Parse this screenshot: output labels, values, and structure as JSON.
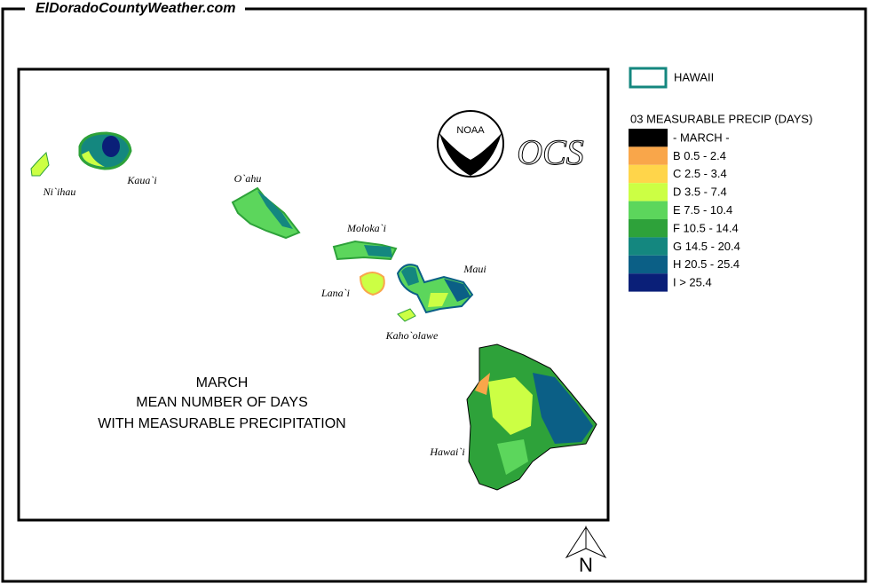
{
  "header": {
    "site": "ElDoradoCountyWeather.com"
  },
  "map": {
    "title_lines": [
      "MARCH",
      "MEAN NUMBER OF DAYS",
      "WITH MEASURABLE PRECIPITATION"
    ],
    "islands": [
      {
        "label": "Ni`ihau"
      },
      {
        "label": "Kaua`i"
      },
      {
        "label": "O`ahu"
      },
      {
        "label": "Moloka`i"
      },
      {
        "label": "Lana`i"
      },
      {
        "label": "Maui"
      },
      {
        "label": "Kaho`olawe"
      },
      {
        "label": "Hawai`i"
      }
    ],
    "noaa": "NOAA",
    "ocs": "OCS",
    "north": "N"
  },
  "legend": {
    "region": "HAWAII",
    "title": "03 MEASURABLE  PRECIP (DAYS)",
    "items": [
      {
        "label": "- MARCH -",
        "color": "#000000"
      },
      {
        "label": "B 0.5 - 2.4",
        "color": "#f9a64a"
      },
      {
        "label": "C 2.5 - 3.4",
        "color": "#ffd54a"
      },
      {
        "label": "D 3.5 - 7.4",
        "color": "#ccff44"
      },
      {
        "label": "E 7.5 - 10.4",
        "color": "#5cd65c"
      },
      {
        "label": "F 10.5 - 14.4",
        "color": "#2ea23a"
      },
      {
        "label": "G 14.5 - 20.4",
        "color": "#14877f"
      },
      {
        "label": "H 20.5 - 25.4",
        "color": "#0b5f86"
      },
      {
        "label": "I > 25.4",
        "color": "#0a1f78"
      }
    ]
  }
}
